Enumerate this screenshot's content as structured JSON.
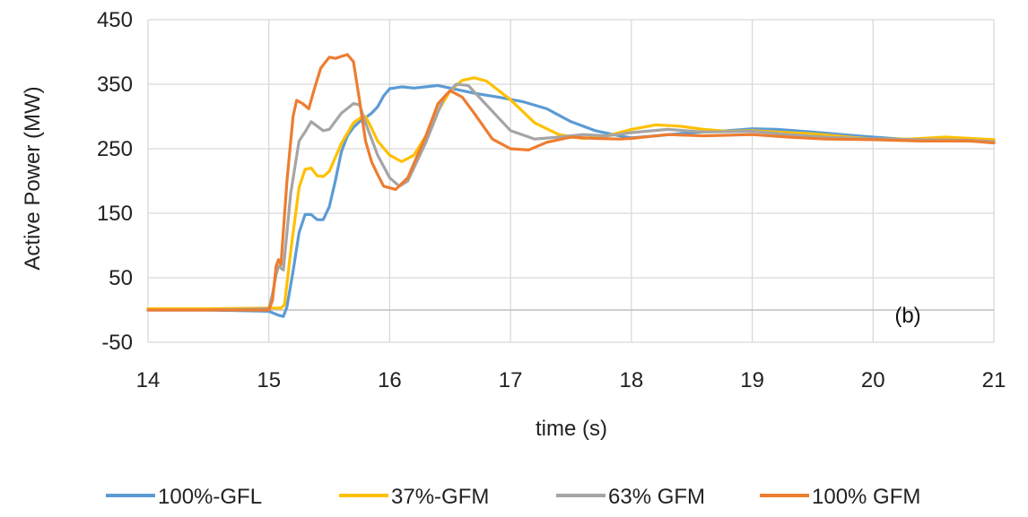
{
  "chart_data": {
    "type": "line",
    "title": "",
    "xlabel": "time (s)",
    "ylabel": "Active Power (MW)",
    "xlim": [
      14,
      21
    ],
    "ylim": [
      -50,
      450
    ],
    "xticks": [
      14,
      15,
      16,
      17,
      18,
      19,
      20,
      21
    ],
    "yticks": [
      -50,
      50,
      150,
      250,
      350,
      450
    ],
    "xtick_labels": [
      "14",
      "15",
      "16",
      "17",
      "18",
      "19",
      "20",
      "21"
    ],
    "ytick_labels": [
      "-50",
      "50",
      "150",
      "250",
      "350",
      "450"
    ],
    "grid": true,
    "legend_position": "bottom",
    "annotation": "(b)",
    "series": [
      {
        "name": "100%-GFL",
        "color": "#5b9bd5",
        "points": [
          [
            14,
            0
          ],
          [
            14.5,
            0
          ],
          [
            15,
            -2
          ],
          [
            15.08,
            -8
          ],
          [
            15.12,
            -10
          ],
          [
            15.15,
            5
          ],
          [
            15.2,
            60
          ],
          [
            15.25,
            120
          ],
          [
            15.3,
            148
          ],
          [
            15.35,
            148
          ],
          [
            15.4,
            140
          ],
          [
            15.45,
            140
          ],
          [
            15.5,
            160
          ],
          [
            15.55,
            200
          ],
          [
            15.6,
            245
          ],
          [
            15.65,
            270
          ],
          [
            15.7,
            283
          ],
          [
            15.75,
            292
          ],
          [
            15.8,
            298
          ],
          [
            15.85,
            305
          ],
          [
            15.9,
            315
          ],
          [
            15.95,
            332
          ],
          [
            16,
            343
          ],
          [
            16.1,
            346
          ],
          [
            16.2,
            344
          ],
          [
            16.3,
            346
          ],
          [
            16.4,
            348
          ],
          [
            16.5,
            344
          ],
          [
            16.7,
            336
          ],
          [
            16.9,
            330
          ],
          [
            17.1,
            323
          ],
          [
            17.3,
            312
          ],
          [
            17.5,
            292
          ],
          [
            17.7,
            278
          ],
          [
            17.9,
            270
          ],
          [
            18,
            267
          ],
          [
            18.2,
            270
          ],
          [
            18.5,
            275
          ],
          [
            18.8,
            278
          ],
          [
            19,
            281
          ],
          [
            19.2,
            280
          ],
          [
            19.5,
            276
          ],
          [
            19.8,
            271
          ],
          [
            20,
            268
          ],
          [
            20.3,
            264
          ],
          [
            20.6,
            265
          ],
          [
            21,
            262
          ]
        ]
      },
      {
        "name": "37%-GFM",
        "color": "#ffc000",
        "points": [
          [
            14,
            2
          ],
          [
            14.5,
            2
          ],
          [
            15,
            3
          ],
          [
            15.1,
            3
          ],
          [
            15.13,
            8
          ],
          [
            15.18,
            90
          ],
          [
            15.25,
            190
          ],
          [
            15.3,
            218
          ],
          [
            15.35,
            220
          ],
          [
            15.4,
            208
          ],
          [
            15.45,
            207
          ],
          [
            15.5,
            215
          ],
          [
            15.6,
            258
          ],
          [
            15.7,
            290
          ],
          [
            15.75,
            297
          ],
          [
            15.8,
            300
          ],
          [
            15.85,
            282
          ],
          [
            15.9,
            262
          ],
          [
            16,
            240
          ],
          [
            16.1,
            230
          ],
          [
            16.2,
            240
          ],
          [
            16.3,
            270
          ],
          [
            16.4,
            308
          ],
          [
            16.5,
            340
          ],
          [
            16.6,
            356
          ],
          [
            16.7,
            360
          ],
          [
            16.8,
            355
          ],
          [
            17,
            326
          ],
          [
            17.2,
            290
          ],
          [
            17.4,
            272
          ],
          [
            17.6,
            266
          ],
          [
            17.8,
            270
          ],
          [
            18,
            280
          ],
          [
            18.2,
            287
          ],
          [
            18.4,
            285
          ],
          [
            18.6,
            280
          ],
          [
            18.8,
            277
          ],
          [
            19,
            278
          ],
          [
            19.2,
            276
          ],
          [
            19.5,
            273
          ],
          [
            19.8,
            268
          ],
          [
            20,
            265
          ],
          [
            20.3,
            265
          ],
          [
            20.6,
            268
          ],
          [
            21,
            264
          ]
        ]
      },
      {
        "name": "63% GFM",
        "color": "#a5a5a5",
        "points": [
          [
            14,
            0
          ],
          [
            14.5,
            0
          ],
          [
            15,
            2
          ],
          [
            15.03,
            25
          ],
          [
            15.06,
            55
          ],
          [
            15.08,
            68
          ],
          [
            15.12,
            62
          ],
          [
            15.18,
            180
          ],
          [
            15.25,
            262
          ],
          [
            15.3,
            276
          ],
          [
            15.35,
            292
          ],
          [
            15.45,
            278
          ],
          [
            15.5,
            280
          ],
          [
            15.6,
            305
          ],
          [
            15.7,
            320
          ],
          [
            15.75,
            318
          ],
          [
            15.8,
            290
          ],
          [
            15.9,
            240
          ],
          [
            16,
            205
          ],
          [
            16.08,
            192
          ],
          [
            16.15,
            200
          ],
          [
            16.3,
            260
          ],
          [
            16.45,
            330
          ],
          [
            16.55,
            350
          ],
          [
            16.65,
            348
          ],
          [
            16.8,
            318
          ],
          [
            17,
            278
          ],
          [
            17.2,
            265
          ],
          [
            17.4,
            268
          ],
          [
            17.6,
            272
          ],
          [
            17.8,
            270
          ],
          [
            18,
            275
          ],
          [
            18.3,
            280
          ],
          [
            18.6,
            276
          ],
          [
            19,
            277
          ],
          [
            19.3,
            272
          ],
          [
            19.6,
            268
          ],
          [
            20,
            265
          ],
          [
            20.4,
            264
          ],
          [
            20.8,
            263
          ],
          [
            21,
            261
          ]
        ]
      },
      {
        "name": "100% GFM",
        "color": "#ed7d31",
        "points": [
          [
            14,
            0
          ],
          [
            14.5,
            0
          ],
          [
            15,
            0
          ],
          [
            15.03,
            15
          ],
          [
            15.06,
            68
          ],
          [
            15.08,
            78
          ],
          [
            15.1,
            70
          ],
          [
            15.15,
            200
          ],
          [
            15.2,
            300
          ],
          [
            15.23,
            325
          ],
          [
            15.28,
            320
          ],
          [
            15.33,
            312
          ],
          [
            15.38,
            345
          ],
          [
            15.43,
            375
          ],
          [
            15.5,
            392
          ],
          [
            15.55,
            390
          ],
          [
            15.6,
            393
          ],
          [
            15.65,
            396
          ],
          [
            15.7,
            385
          ],
          [
            15.75,
            325
          ],
          [
            15.8,
            262
          ],
          [
            15.85,
            230
          ],
          [
            15.9,
            210
          ],
          [
            15.95,
            192
          ],
          [
            16.05,
            187
          ],
          [
            16.15,
            205
          ],
          [
            16.3,
            270
          ],
          [
            16.4,
            320
          ],
          [
            16.5,
            340
          ],
          [
            16.6,
            330
          ],
          [
            16.7,
            305
          ],
          [
            16.85,
            265
          ],
          [
            17,
            250
          ],
          [
            17.15,
            248
          ],
          [
            17.3,
            260
          ],
          [
            17.5,
            268
          ],
          [
            17.7,
            266
          ],
          [
            17.9,
            265
          ],
          [
            18,
            266
          ],
          [
            18.3,
            272
          ],
          [
            18.6,
            270
          ],
          [
            19,
            272
          ],
          [
            19.3,
            268
          ],
          [
            19.6,
            265
          ],
          [
            20,
            264
          ],
          [
            20.4,
            262
          ],
          [
            20.8,
            262
          ],
          [
            21,
            259
          ]
        ]
      }
    ]
  }
}
